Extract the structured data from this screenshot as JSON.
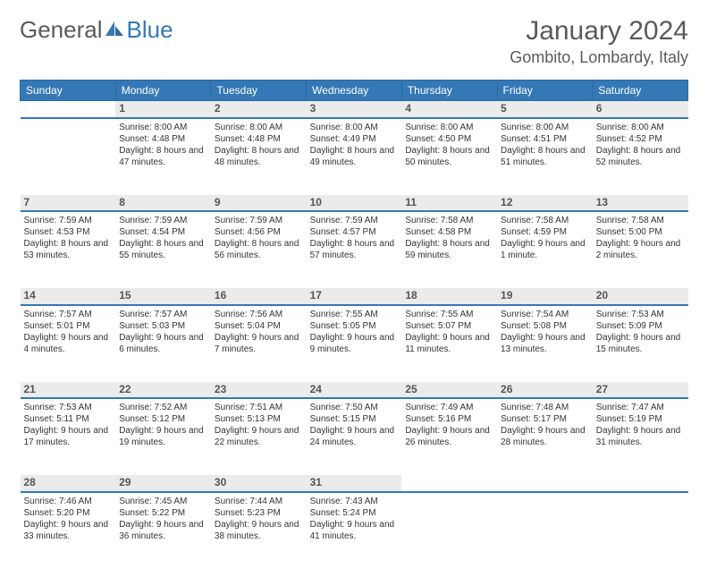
{
  "logo": {
    "text1": "General",
    "text2": "Blue"
  },
  "title": "January 2024",
  "location": "Gombito, Lombardy, Italy",
  "colors": {
    "header_bg": "#3478b6",
    "daynum_bg": "#ebebeb"
  },
  "weekdays": [
    "Sunday",
    "Monday",
    "Tuesday",
    "Wednesday",
    "Thursday",
    "Friday",
    "Saturday"
  ],
  "weeks": [
    [
      null,
      {
        "n": "1",
        "sr": "8:00 AM",
        "ss": "4:48 PM",
        "dl": "8 hours and 47 minutes."
      },
      {
        "n": "2",
        "sr": "8:00 AM",
        "ss": "4:48 PM",
        "dl": "8 hours and 48 minutes."
      },
      {
        "n": "3",
        "sr": "8:00 AM",
        "ss": "4:49 PM",
        "dl": "8 hours and 49 minutes."
      },
      {
        "n": "4",
        "sr": "8:00 AM",
        "ss": "4:50 PM",
        "dl": "8 hours and 50 minutes."
      },
      {
        "n": "5",
        "sr": "8:00 AM",
        "ss": "4:51 PM",
        "dl": "8 hours and 51 minutes."
      },
      {
        "n": "6",
        "sr": "8:00 AM",
        "ss": "4:52 PM",
        "dl": "8 hours and 52 minutes."
      }
    ],
    [
      {
        "n": "7",
        "sr": "7:59 AM",
        "ss": "4:53 PM",
        "dl": "8 hours and 53 minutes."
      },
      {
        "n": "8",
        "sr": "7:59 AM",
        "ss": "4:54 PM",
        "dl": "8 hours and 55 minutes."
      },
      {
        "n": "9",
        "sr": "7:59 AM",
        "ss": "4:56 PM",
        "dl": "8 hours and 56 minutes."
      },
      {
        "n": "10",
        "sr": "7:59 AM",
        "ss": "4:57 PM",
        "dl": "8 hours and 57 minutes."
      },
      {
        "n": "11",
        "sr": "7:58 AM",
        "ss": "4:58 PM",
        "dl": "8 hours and 59 minutes."
      },
      {
        "n": "12",
        "sr": "7:58 AM",
        "ss": "4:59 PM",
        "dl": "9 hours and 1 minute."
      },
      {
        "n": "13",
        "sr": "7:58 AM",
        "ss": "5:00 PM",
        "dl": "9 hours and 2 minutes."
      }
    ],
    [
      {
        "n": "14",
        "sr": "7:57 AM",
        "ss": "5:01 PM",
        "dl": "9 hours and 4 minutes."
      },
      {
        "n": "15",
        "sr": "7:57 AM",
        "ss": "5:03 PM",
        "dl": "9 hours and 6 minutes."
      },
      {
        "n": "16",
        "sr": "7:56 AM",
        "ss": "5:04 PM",
        "dl": "9 hours and 7 minutes."
      },
      {
        "n": "17",
        "sr": "7:55 AM",
        "ss": "5:05 PM",
        "dl": "9 hours and 9 minutes."
      },
      {
        "n": "18",
        "sr": "7:55 AM",
        "ss": "5:07 PM",
        "dl": "9 hours and 11 minutes."
      },
      {
        "n": "19",
        "sr": "7:54 AM",
        "ss": "5:08 PM",
        "dl": "9 hours and 13 minutes."
      },
      {
        "n": "20",
        "sr": "7:53 AM",
        "ss": "5:09 PM",
        "dl": "9 hours and 15 minutes."
      }
    ],
    [
      {
        "n": "21",
        "sr": "7:53 AM",
        "ss": "5:11 PM",
        "dl": "9 hours and 17 minutes."
      },
      {
        "n": "22",
        "sr": "7:52 AM",
        "ss": "5:12 PM",
        "dl": "9 hours and 19 minutes."
      },
      {
        "n": "23",
        "sr": "7:51 AM",
        "ss": "5:13 PM",
        "dl": "9 hours and 22 minutes."
      },
      {
        "n": "24",
        "sr": "7:50 AM",
        "ss": "5:15 PM",
        "dl": "9 hours and 24 minutes."
      },
      {
        "n": "25",
        "sr": "7:49 AM",
        "ss": "5:16 PM",
        "dl": "9 hours and 26 minutes."
      },
      {
        "n": "26",
        "sr": "7:48 AM",
        "ss": "5:17 PM",
        "dl": "9 hours and 28 minutes."
      },
      {
        "n": "27",
        "sr": "7:47 AM",
        "ss": "5:19 PM",
        "dl": "9 hours and 31 minutes."
      }
    ],
    [
      {
        "n": "28",
        "sr": "7:46 AM",
        "ss": "5:20 PM",
        "dl": "9 hours and 33 minutes."
      },
      {
        "n": "29",
        "sr": "7:45 AM",
        "ss": "5:22 PM",
        "dl": "9 hours and 36 minutes."
      },
      {
        "n": "30",
        "sr": "7:44 AM",
        "ss": "5:23 PM",
        "dl": "9 hours and 38 minutes."
      },
      {
        "n": "31",
        "sr": "7:43 AM",
        "ss": "5:24 PM",
        "dl": "9 hours and 41 minutes."
      },
      null,
      null,
      null
    ]
  ],
  "labels": {
    "sunrise": "Sunrise:",
    "sunset": "Sunset:",
    "daylight": "Daylight:"
  }
}
